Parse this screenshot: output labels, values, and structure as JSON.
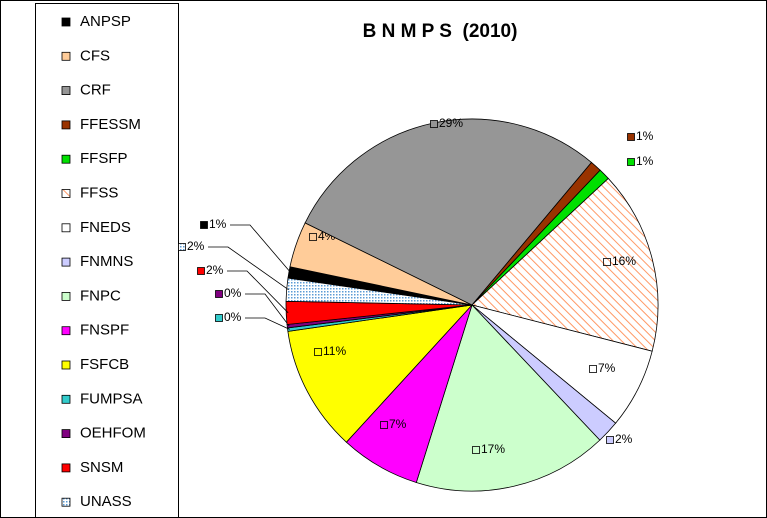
{
  "chart_data": {
    "type": "pie",
    "title": "B N M P S  (2010)",
    "categories": [
      "ANPSP",
      "CFS",
      "CRF",
      "FFESSM",
      "FFSFP",
      "FFSS",
      "FNEDS",
      "FNMNS",
      "FNPC",
      "FNSPF",
      "FSFCB",
      "FUMPSA",
      "OEHFOM",
      "SNSM",
      "UNASS"
    ],
    "values": [
      1,
      4,
      29,
      1,
      1,
      16,
      7,
      2,
      17,
      7,
      11,
      0.3,
      0.3,
      2,
      2
    ],
    "value_labels": [
      "1%",
      "4%",
      "29%",
      "1%",
      "1%",
      "16%",
      "7%",
      "2%",
      "17%",
      "7%",
      "11%",
      "0%",
      "0%",
      "2%",
      "2%"
    ],
    "colors": [
      "#000000",
      "#ffcc99",
      "#969696",
      "#993300",
      "#00e000",
      "#ff9966",
      "#ffffff",
      "#ccccff",
      "#ccffcc",
      "#ff00ff",
      "#ffff00",
      "#33cccc",
      "#800080",
      "#ff0000",
      "#5b9bd5"
    ],
    "fill_patterns": [
      null,
      null,
      null,
      null,
      null,
      "diagonal",
      null,
      null,
      null,
      null,
      null,
      null,
      null,
      null,
      "dots"
    ],
    "legend": "left"
  }
}
